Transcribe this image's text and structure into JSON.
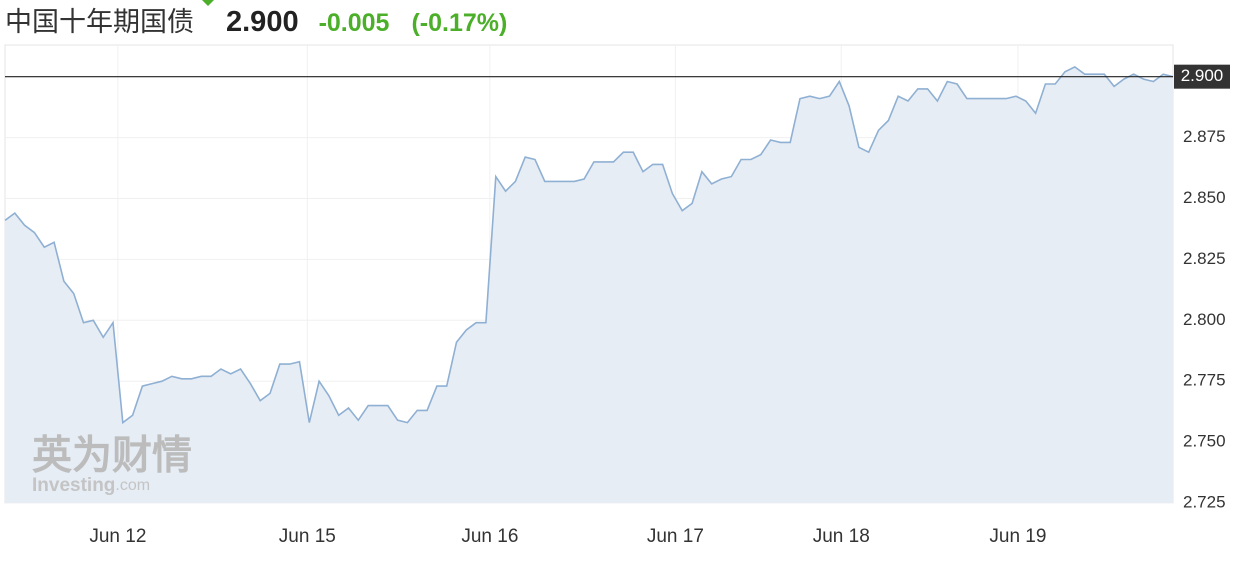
{
  "header": {
    "name": "中国十年期国债",
    "price": "2.900",
    "change": "-0.005",
    "change_pct": "(-0.17%)"
  },
  "watermark": {
    "brand": "英为财情",
    "site": "Investing",
    "domain": ".com"
  },
  "chart_data": {
    "type": "area",
    "color": "#8fb0d3",
    "fill": "#e6edf5",
    "grid": true,
    "x": [
      0,
      1,
      2,
      3,
      4,
      5,
      6,
      7,
      8,
      9,
      10,
      11,
      12,
      13,
      14,
      15,
      16,
      17,
      18,
      19,
      20,
      21,
      22,
      23,
      24,
      25,
      26,
      27,
      28,
      29,
      30,
      31,
      32,
      33,
      34,
      35,
      36,
      37,
      38,
      39,
      40,
      41,
      42,
      43,
      44,
      45,
      46,
      47,
      48,
      49,
      50,
      51,
      52,
      53,
      54,
      55,
      56,
      57,
      58,
      59,
      60,
      61,
      62,
      63,
      64,
      65,
      66,
      67,
      68,
      69,
      70,
      71,
      72,
      73,
      74,
      75,
      76,
      77,
      78,
      79,
      80,
      81,
      82,
      83,
      84,
      85,
      86,
      87,
      88,
      89,
      90,
      91,
      92,
      93,
      94,
      95,
      96,
      97,
      98,
      99,
      100,
      101,
      102,
      103,
      104,
      105,
      106,
      107,
      108,
      109,
      110,
      111,
      112,
      113,
      114,
      115,
      116,
      117,
      118,
      119
    ],
    "values": [
      2.841,
      2.844,
      2.839,
      2.836,
      2.83,
      2.832,
      2.816,
      2.811,
      2.799,
      2.8,
      2.793,
      2.799,
      2.758,
      2.761,
      2.773,
      2.774,
      2.775,
      2.777,
      2.776,
      2.776,
      2.777,
      2.777,
      2.78,
      2.778,
      2.78,
      2.774,
      2.767,
      2.77,
      2.782,
      2.782,
      2.783,
      2.758,
      2.775,
      2.769,
      2.761,
      2.764,
      2.759,
      2.765,
      2.765,
      2.765,
      2.759,
      2.758,
      2.763,
      2.763,
      2.773,
      2.773,
      2.791,
      2.796,
      2.799,
      2.799,
      2.859,
      2.853,
      2.857,
      2.867,
      2.866,
      2.857,
      2.857,
      2.857,
      2.857,
      2.858,
      2.865,
      2.865,
      2.865,
      2.869,
      2.869,
      2.861,
      2.864,
      2.864,
      2.852,
      2.845,
      2.848,
      2.861,
      2.856,
      2.858,
      2.859,
      2.866,
      2.866,
      2.868,
      2.874,
      2.873,
      2.873,
      2.891,
      2.892,
      2.891,
      2.892,
      2.898,
      2.888,
      2.871,
      2.869,
      2.878,
      2.882,
      2.892,
      2.89,
      2.895,
      2.895,
      2.89,
      2.898,
      2.897,
      2.891,
      2.891,
      2.891,
      2.891,
      2.891,
      2.892,
      2.89,
      2.885,
      2.897,
      2.897,
      2.902,
      2.904,
      2.901,
      2.901,
      2.901,
      2.896,
      2.899,
      2.901,
      2.899,
      2.898,
      2.901,
      2.9
    ],
    "xlim": [
      0,
      119
    ],
    "xticks": [
      {
        "value": 11.5,
        "label": "Jun 12"
      },
      {
        "value": 30.8,
        "label": "Jun 15"
      },
      {
        "value": 49.4,
        "label": "Jun 16"
      },
      {
        "value": 68.3,
        "label": "Jun 17"
      },
      {
        "value": 85.2,
        "label": "Jun 18"
      },
      {
        "value": 103.2,
        "label": "Jun 19"
      }
    ],
    "ylim": [
      2.725,
      2.913
    ],
    "yticks": [
      2.725,
      {
        "value": 2.75,
        "label": "2.750"
      },
      2.775,
      {
        "value": 2.8,
        "label": "2.800"
      },
      2.825,
      {
        "value": 2.85,
        "label": "2.850"
      },
      2.875,
      {
        "value": 2.9,
        "label": "2.900"
      }
    ]
  }
}
